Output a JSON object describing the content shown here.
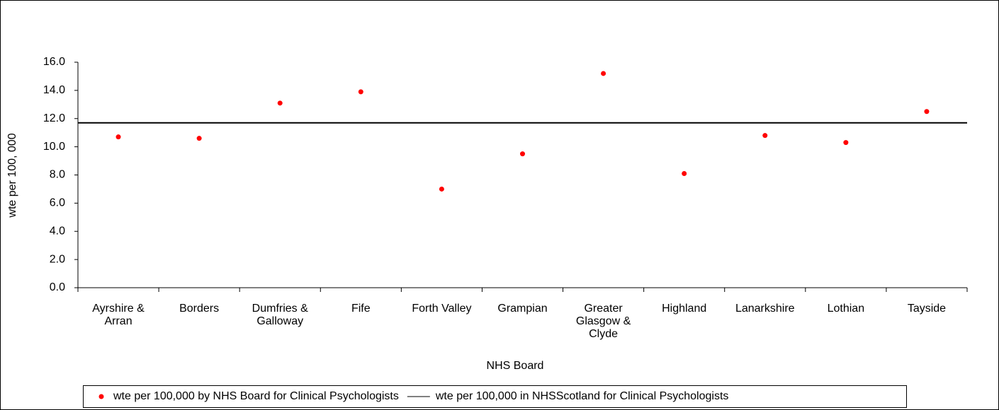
{
  "chart_data": {
    "type": "scatter",
    "x_label": "NHS Board",
    "y_label": "wte per 100, 000",
    "categories": [
      "Ayrshire & Arran",
      "Borders",
      "Dumfries & Galloway",
      "Fife",
      "Forth Valley",
      "Grampian",
      "Greater Glasgow & Clyde",
      "Highland",
      "Lanarkshire",
      "Lothian",
      "Tayside"
    ],
    "series": [
      {
        "name": "wte per 100,000 by NHS Board for Clinical Psychologists",
        "color": "#ff0000",
        "values": [
          10.7,
          10.6,
          13.1,
          13.9,
          7.0,
          9.5,
          15.2,
          8.1,
          10.8,
          10.3,
          12.5
        ]
      },
      {
        "name": "wte per 100,000 in NHSScotland for Clinical Psychologists",
        "color": "#000000",
        "value": 11.7
      }
    ],
    "ylim": [
      0,
      16
    ],
    "yticks": [
      {
        "value": 0,
        "label": "0.0"
      },
      {
        "value": 2,
        "label": "2.0"
      },
      {
        "value": 4,
        "label": "4.0"
      },
      {
        "value": 6,
        "label": "6.0"
      },
      {
        "value": 8,
        "label": "8.0"
      },
      {
        "value": 10,
        "label": "10.0"
      },
      {
        "value": 12,
        "label": "12.0"
      },
      {
        "value": 14,
        "label": "14.0"
      },
      {
        "value": 16,
        "label": "16.0"
      }
    ],
    "legend": "bottom"
  }
}
